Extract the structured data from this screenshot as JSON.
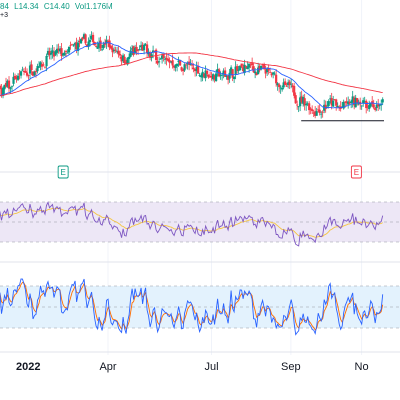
{
  "header": {
    "open_fragment": "84",
    "low": "L14.34",
    "close": "C14.40",
    "volume": "Vol1.176M",
    "sub_fragment": "+3"
  },
  "colors": {
    "up": "#089981",
    "down": "#f23645",
    "ma_fast": "#2962ff",
    "ma_slow": "#f23645",
    "rsi_line": "#7e57c2",
    "rsi_signal": "#f5c542",
    "rsi_band": "#ede7f6",
    "stoch_k": "#2962ff",
    "stoch_d": "#ff6d00",
    "stoch_band": "#e3f2fd",
    "grid": "#f0f3fa",
    "axis_text": "#131722"
  },
  "events": [
    {
      "label": "E",
      "color": "#089981",
      "month_pos": 2.7
    },
    {
      "label": "E",
      "color": "#f23645",
      "month_pos": 11.2
    }
  ],
  "chart_data": {
    "type": "candlestick",
    "x_axis": {
      "ticks": [
        {
          "label": "2022",
          "month_pos": 0.6,
          "bold": true
        },
        {
          "label": "Apr",
          "month_pos": 4.0
        },
        {
          "label": "Jul",
          "month_pos": 7.0
        },
        {
          "label": "Sep",
          "month_pos": 9.3
        },
        {
          "label": "No",
          "month_pos": 11.35
        }
      ]
    },
    "price_range": [
      12.5,
      25.5
    ],
    "price_trend_anchors": [
      [
        0,
        17.4
      ],
      [
        0.6,
        17.8
      ],
      [
        1.2,
        18.8
      ],
      [
        1.8,
        20.4
      ],
      [
        2.2,
        21.3
      ],
      [
        2.7,
        21.7
      ],
      [
        3.2,
        22.6
      ],
      [
        3.7,
        22.9
      ],
      [
        4.1,
        22.0
      ],
      [
        4.5,
        21.4
      ],
      [
        4.9,
        22.0
      ],
      [
        5.3,
        21.6
      ],
      [
        5.7,
        21.1
      ],
      [
        6.2,
        20.4
      ],
      [
        6.7,
        20.0
      ],
      [
        7.2,
        19.6
      ],
      [
        7.6,
        19.9
      ],
      [
        8.0,
        20.4
      ],
      [
        8.4,
        20.0
      ],
      [
        8.8,
        19.2
      ],
      [
        9.2,
        18.2
      ],
      [
        9.6,
        17.1
      ],
      [
        10.0,
        16.4
      ],
      [
        10.4,
        16.9
      ],
      [
        10.8,
        16.5
      ],
      [
        11.2,
        17.2
      ],
      [
        11.6,
        16.9
      ],
      [
        12.0,
        16.6
      ]
    ],
    "support_line": {
      "from_month": 9.6,
      "to_month": 12.0,
      "price": 15.3
    },
    "ma_fast_period": 20,
    "ma_slow_period": 100,
    "rsi": {
      "range": [
        20,
        80
      ],
      "band": [
        30,
        70
      ]
    },
    "stochastic": {
      "range": [
        0,
        100
      ],
      "band": [
        20,
        80
      ]
    }
  }
}
